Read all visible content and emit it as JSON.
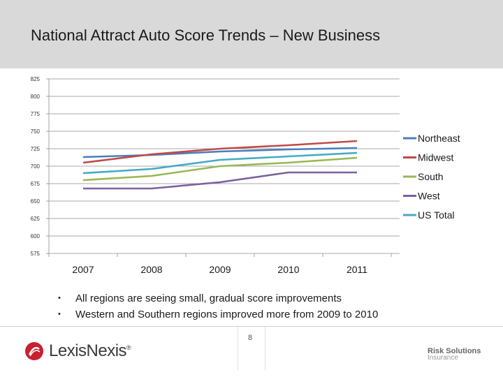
{
  "slide": {
    "title": "National Attract Auto Score Trends – New Business",
    "bullets": [
      "All regions are seeing small, gradual score improvements",
      "Western and Southern regions improved more from 2009 to 2010"
    ],
    "page_number": "8",
    "logo_text": "LexisNexis",
    "logo_mark": "®",
    "footer_right_line1": "Risk Solutions",
    "footer_right_line2": "Insurance"
  },
  "chart_data": {
    "type": "line",
    "title": "",
    "xlabel": "",
    "ylabel": "",
    "categories": [
      "2007",
      "2008",
      "2009",
      "2010",
      "2011"
    ],
    "ylim": [
      575,
      825
    ],
    "yticks": [
      575,
      600,
      625,
      650,
      675,
      700,
      725,
      750,
      775,
      800,
      825
    ],
    "ytick_labels": [
      "575",
      "600",
      "625",
      "650",
      "675",
      "700",
      "725",
      "750",
      "775",
      "800",
      "825"
    ],
    "grid": true,
    "legend_position": "right",
    "series": [
      {
        "name": "Northeast",
        "color": "#4a7ebb",
        "values": [
          713,
          716,
          721,
          724,
          726
        ]
      },
      {
        "name": "Midwest",
        "color": "#be4b48",
        "values": [
          705,
          717,
          725,
          730,
          736
        ]
      },
      {
        "name": "South",
        "color": "#98b954",
        "values": [
          680,
          686,
          700,
          705,
          712
        ]
      },
      {
        "name": "West",
        "color": "#7d60a0",
        "values": [
          668,
          668,
          677,
          691,
          691
        ]
      },
      {
        "name": "US Total",
        "color": "#46aac5",
        "values": [
          690,
          696,
          709,
          714,
          719
        ]
      }
    ]
  }
}
